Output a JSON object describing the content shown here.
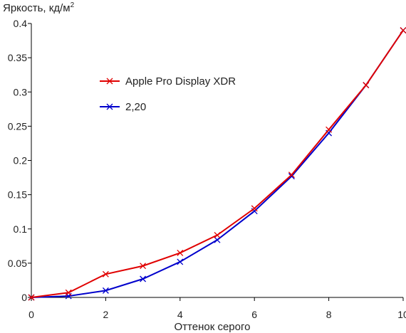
{
  "chart_data": {
    "type": "line",
    "title": "",
    "ylabel": "Яркость, кд/м",
    "ylabel_superscript": "2",
    "xlabel": "Оттенок серого",
    "xlim": [
      0,
      10
    ],
    "ylim": [
      0,
      0.4
    ],
    "x_ticks": [
      0,
      2,
      4,
      6,
      8,
      10
    ],
    "x_tick_labels": [
      "0",
      "2",
      "4",
      "6",
      "8",
      "10"
    ],
    "y_ticks": [
      0,
      0.05,
      0.1,
      0.15,
      0.2,
      0.25,
      0.3,
      0.35,
      0.4
    ],
    "y_tick_labels": [
      "0",
      "0.05",
      "0.1",
      "0.15",
      "0.2",
      "0.25",
      "0.3",
      "0.35",
      "0.4"
    ],
    "grid": false,
    "legend_position": "upper-left inside plot",
    "x": [
      0,
      1,
      2,
      3,
      4,
      5,
      6,
      7,
      8,
      9,
      10
    ],
    "series": [
      {
        "name": "Apple Pro Display XDR",
        "color": "#e00000",
        "marker": "x",
        "values": [
          0,
          0.007,
          0.034,
          0.046,
          0.065,
          0.091,
          0.13,
          0.179,
          0.245,
          0.31,
          0.39
        ]
      },
      {
        "name": "2,20",
        "color": "#0000cc",
        "marker": "x",
        "values": [
          0,
          0.002,
          0.01,
          0.027,
          0.052,
          0.084,
          0.126,
          0.177,
          0.24,
          0.31,
          0.39
        ]
      }
    ]
  }
}
